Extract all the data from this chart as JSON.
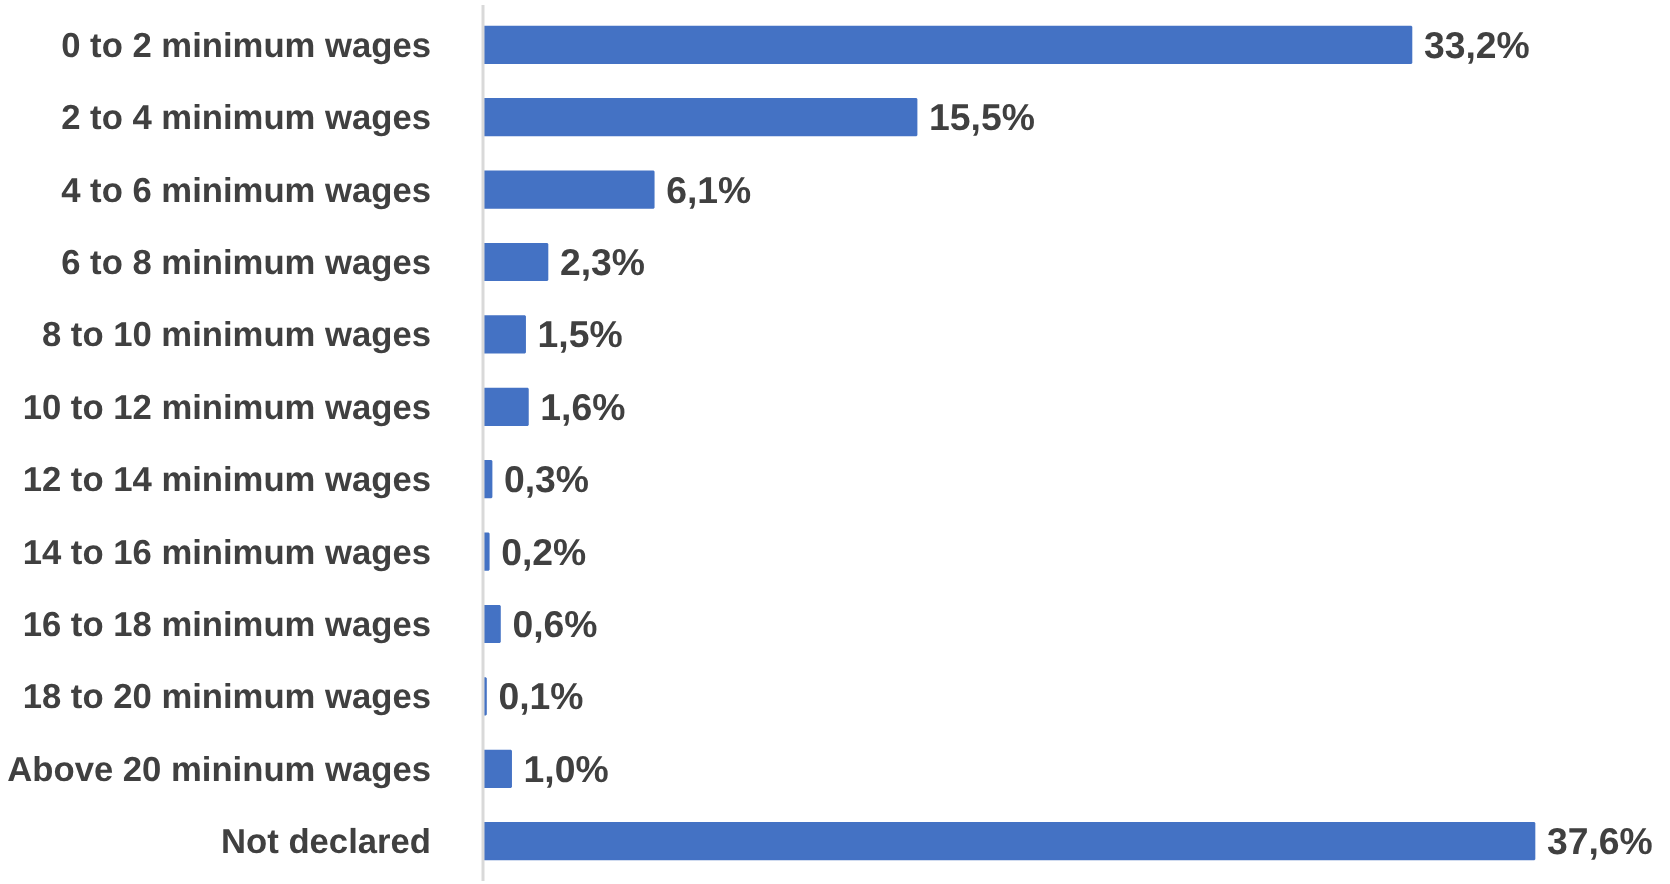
{
  "chart_data": {
    "type": "bar",
    "orientation": "horizontal",
    "categories": [
      "0 to 2 minimum wages",
      "2 to 4 minimum wages",
      "4 to 6 minimum wages",
      "6 to 8 minimum wages",
      "8 to 10 minimum wages",
      "10 to 12 minimum wages",
      "12 to 14 minimum wages",
      "14 to 16 minimum wages",
      "16 to 18 minimum wages",
      "18 to 20 minimum wages",
      "Above 20 mininum wages",
      "Not declared"
    ],
    "values": [
      33.2,
      15.5,
      6.1,
      2.3,
      1.5,
      1.6,
      0.3,
      0.2,
      0.6,
      0.1,
      1.0,
      37.6
    ],
    "value_labels": [
      "33,2%",
      "15,5%",
      "6,1%",
      "2,3%",
      "1,5%",
      "1,6%",
      "0,3%",
      "0,2%",
      "0,6%",
      "0,1%",
      "1,0%",
      "37,6%"
    ],
    "color": "#4472c4",
    "grid": false
  }
}
